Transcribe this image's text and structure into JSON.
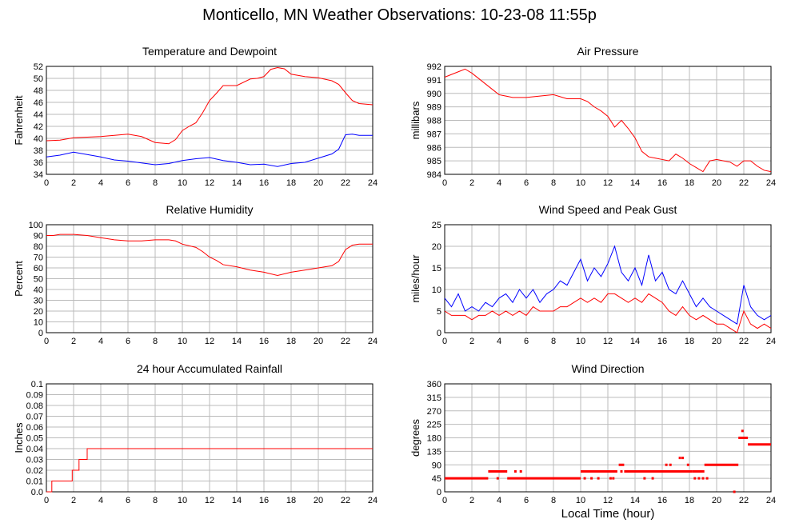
{
  "page": {
    "title": "Monticello, MN Weather Observations: 10-23-08 11:55p",
    "x_axis_title": "Local Time (hour)"
  },
  "colors": {
    "red": "#ff0000",
    "blue": "#0000ff",
    "grid": "#bbbbbb",
    "axis": "#000000"
  },
  "chart_data": [
    {
      "id": "temp",
      "type": "line",
      "title": "Temperature and Dewpoint",
      "ylabel": "Fahrenheit",
      "xlabel": "",
      "xlim": [
        0,
        24
      ],
      "ylim": [
        34,
        52
      ],
      "x_ticks": [
        0,
        2,
        4,
        6,
        8,
        10,
        12,
        14,
        16,
        18,
        20,
        22,
        24
      ],
      "y_ticks": [
        34,
        36,
        38,
        40,
        42,
        44,
        46,
        48,
        50,
        52
      ],
      "grid": true,
      "series": [
        {
          "color": "#ff0000",
          "x": [
            0,
            1,
            2,
            3,
            4,
            5,
            6,
            7,
            8,
            9,
            9.5,
            10,
            10.5,
            11,
            11.5,
            12,
            12.5,
            13,
            14,
            15,
            15.5,
            16,
            16.5,
            17,
            17.5,
            18,
            19,
            20,
            21,
            21.5,
            22,
            22.5,
            23,
            24
          ],
          "y": [
            39.6,
            39.7,
            40.1,
            40.2,
            40.3,
            40.5,
            40.7,
            40.3,
            39.3,
            39.1,
            39.8,
            41.3,
            42.0,
            42.6,
            44.3,
            46.3,
            47.5,
            48.8,
            48.8,
            49.9,
            50.0,
            50.3,
            51.5,
            51.8,
            51.6,
            50.7,
            50.3,
            50.1,
            49.6,
            49.0,
            47.6,
            46.3,
            45.8,
            45.6
          ]
        },
        {
          "color": "#0000ff",
          "x": [
            0,
            1,
            2,
            3,
            4,
            5,
            6,
            7,
            8,
            9,
            10,
            11,
            12,
            13,
            14,
            15,
            16,
            17,
            18,
            19,
            20,
            21,
            21.5,
            22,
            22.5,
            23,
            24
          ],
          "y": [
            36.9,
            37.2,
            37.7,
            37.3,
            36.9,
            36.4,
            36.2,
            35.9,
            35.6,
            35.8,
            36.3,
            36.6,
            36.8,
            36.3,
            36.0,
            35.6,
            35.7,
            35.3,
            35.8,
            36.0,
            36.7,
            37.4,
            38.2,
            40.6,
            40.7,
            40.5,
            40.5
          ]
        }
      ]
    },
    {
      "id": "pressure",
      "type": "line",
      "title": "Air Pressure",
      "ylabel": "millibars",
      "xlabel": "",
      "xlim": [
        0,
        24
      ],
      "ylim": [
        984,
        992
      ],
      "x_ticks": [
        0,
        2,
        4,
        6,
        8,
        10,
        12,
        14,
        16,
        18,
        20,
        22,
        24
      ],
      "y_ticks": [
        984,
        985,
        986,
        987,
        988,
        989,
        990,
        991,
        992
      ],
      "grid": true,
      "series": [
        {
          "color": "#ff0000",
          "x": [
            0,
            0.5,
            1,
            1.5,
            2,
            2.5,
            3,
            3.5,
            4,
            5,
            6,
            7,
            8,
            9,
            10,
            10.5,
            11,
            11.5,
            12,
            12.5,
            13,
            13.5,
            14,
            14.5,
            15,
            15.5,
            16,
            16.5,
            17,
            17.5,
            18,
            18.5,
            19,
            19.5,
            20,
            20.5,
            21,
            21.5,
            22,
            22.5,
            23,
            23.5,
            24
          ],
          "y": [
            991.2,
            991.4,
            991.6,
            991.8,
            991.5,
            991.1,
            990.7,
            990.3,
            989.9,
            989.7,
            989.7,
            989.8,
            989.9,
            989.6,
            989.6,
            989.4,
            989.0,
            988.7,
            988.3,
            987.5,
            988.0,
            987.4,
            986.7,
            985.7,
            985.3,
            985.2,
            985.1,
            985.0,
            985.5,
            985.2,
            984.8,
            984.5,
            984.2,
            985.0,
            985.1,
            985.0,
            984.9,
            984.6,
            985.0,
            985.0,
            984.6,
            984.3,
            984.2
          ]
        }
      ]
    },
    {
      "id": "humidity",
      "type": "line",
      "title": "Relative Humidity",
      "ylabel": "Percent",
      "xlabel": "",
      "xlim": [
        0,
        24
      ],
      "ylim": [
        0,
        100
      ],
      "x_ticks": [
        0,
        2,
        4,
        6,
        8,
        10,
        12,
        14,
        16,
        18,
        20,
        22,
        24
      ],
      "y_ticks": [
        0,
        10,
        20,
        30,
        40,
        50,
        60,
        70,
        80,
        90,
        100
      ],
      "grid": true,
      "series": [
        {
          "color": "#ff0000",
          "x": [
            0,
            0.5,
            1,
            2,
            3,
            4,
            5,
            6,
            7,
            8,
            9,
            9.5,
            10,
            11,
            11.5,
            12,
            12.5,
            13,
            14,
            15,
            16,
            17,
            18,
            19,
            20,
            20.5,
            21,
            21.5,
            22,
            22.5,
            23,
            24
          ],
          "y": [
            90,
            90,
            91,
            91,
            90,
            88,
            86,
            85,
            85,
            86,
            86,
            85,
            82,
            79,
            75,
            70,
            67,
            63,
            61,
            58,
            56,
            53,
            56,
            58,
            60,
            61,
            62,
            66,
            77,
            81,
            82,
            82
          ]
        }
      ]
    },
    {
      "id": "wind",
      "type": "line",
      "title": "Wind Speed and Peak Gust",
      "ylabel": "miles/hour",
      "xlabel": "",
      "xlim": [
        0,
        24
      ],
      "ylim": [
        0,
        25
      ],
      "x_ticks": [
        0,
        2,
        4,
        6,
        8,
        10,
        12,
        14,
        16,
        18,
        20,
        22,
        24
      ],
      "y_ticks": [
        0,
        5,
        10,
        15,
        20,
        25
      ],
      "grid": true,
      "series": [
        {
          "color": "#0000ff",
          "x": [
            0,
            0.5,
            1,
            1.5,
            2,
            2.5,
            3,
            3.5,
            4,
            4.5,
            5,
            5.5,
            6,
            6.5,
            7,
            7.5,
            8,
            8.5,
            9,
            9.5,
            10,
            10.5,
            11,
            11.5,
            12,
            12.5,
            13,
            13.5,
            14,
            14.5,
            15,
            15.5,
            16,
            16.5,
            17,
            17.5,
            18,
            18.5,
            19,
            19.5,
            20,
            20.5,
            21,
            21.5,
            22,
            22.5,
            23,
            23.5,
            24
          ],
          "y": [
            8,
            6,
            9,
            5,
            6,
            5,
            7,
            6,
            8,
            9,
            7,
            10,
            8,
            10,
            7,
            9,
            10,
            12,
            11,
            14,
            17,
            12,
            15,
            13,
            16,
            20,
            14,
            12,
            15,
            11,
            18,
            12,
            14,
            10,
            9,
            12,
            9,
            6,
            8,
            6,
            5,
            4,
            3,
            2,
            11,
            6,
            4,
            3,
            4
          ]
        },
        {
          "color": "#ff0000",
          "x": [
            0,
            0.5,
            1,
            1.5,
            2,
            2.5,
            3,
            3.5,
            4,
            4.5,
            5,
            5.5,
            6,
            6.5,
            7,
            7.5,
            8,
            8.5,
            9,
            9.5,
            10,
            10.5,
            11,
            11.5,
            12,
            12.5,
            13,
            13.5,
            14,
            14.5,
            15,
            15.5,
            16,
            16.5,
            17,
            17.5,
            18,
            18.5,
            19,
            19.5,
            20,
            20.5,
            21,
            21.5,
            22,
            22.5,
            23,
            23.5,
            24
          ],
          "y": [
            5,
            4,
            4,
            4,
            3,
            4,
            4,
            5,
            4,
            5,
            4,
            5,
            4,
            6,
            5,
            5,
            5,
            6,
            6,
            7,
            8,
            7,
            8,
            7,
            9,
            9,
            8,
            7,
            8,
            7,
            9,
            8,
            7,
            5,
            4,
            6,
            4,
            3,
            4,
            3,
            2,
            2,
            1,
            0,
            5,
            2,
            1,
            2,
            1
          ]
        }
      ]
    },
    {
      "id": "rain",
      "type": "line",
      "title": "24 hour Accumulated Rainfall",
      "ylabel": "Inches",
      "xlabel": "",
      "xlim": [
        0,
        24
      ],
      "ylim": [
        0,
        0.1
      ],
      "x_ticks": [
        0,
        2,
        4,
        6,
        8,
        10,
        12,
        14,
        16,
        18,
        20,
        22,
        24
      ],
      "y_ticks": [
        0.0,
        0.01,
        0.02,
        0.03,
        0.04,
        0.05,
        0.06,
        0.07,
        0.08,
        0.09,
        0.1
      ],
      "y_tick_labels": [
        "0.0",
        "0.01",
        "0.02",
        "0.03",
        "0.04",
        "0.05",
        "0.06",
        "0.07",
        "0.08",
        "0.09",
        "0.1"
      ],
      "grid": true,
      "series": [
        {
          "color": "#ff0000",
          "step": true,
          "x": [
            0,
            0.4,
            1.9,
            2.4,
            2.7,
            3.0,
            24
          ],
          "y": [
            0.0,
            0.01,
            0.02,
            0.03,
            0.03,
            0.04,
            0.04
          ]
        }
      ]
    },
    {
      "id": "winddir",
      "type": "scatter",
      "title": "Wind Direction",
      "ylabel": "degrees",
      "xlabel": "Local Time (hour)",
      "xlim": [
        0,
        24
      ],
      "ylim": [
        0,
        360
      ],
      "x_ticks": [
        0,
        2,
        4,
        6,
        8,
        10,
        12,
        14,
        16,
        18,
        20,
        22,
        24
      ],
      "y_ticks": [
        0,
        45,
        90,
        135,
        180,
        225,
        270,
        315,
        360
      ],
      "grid": true,
      "segments": [
        {
          "color": "#ff0000",
          "x0": 0,
          "x1": 3.2,
          "y": 45
        },
        {
          "color": "#ff0000",
          "x0": 3.2,
          "x1": 4.6,
          "y": 68
        },
        {
          "color": "#ff0000",
          "x0": 4.6,
          "x1": 10.0,
          "y": 45
        },
        {
          "color": "#ff0000",
          "x0": 10.0,
          "x1": 12.7,
          "y": 68
        },
        {
          "color": "#ff0000",
          "x0": 12.8,
          "x1": 13.2,
          "y": 90
        },
        {
          "color": "#ff0000",
          "x0": 13.2,
          "x1": 16.0,
          "y": 68
        },
        {
          "color": "#ff0000",
          "x0": 16.0,
          "x1": 18.2,
          "y": 68
        },
        {
          "color": "#ff0000",
          "x0": 18.2,
          "x1": 19.1,
          "y": 68
        },
        {
          "color": "#ff0000",
          "x0": 19.1,
          "x1": 21.6,
          "y": 90
        },
        {
          "color": "#ff0000",
          "x0": 21.6,
          "x1": 22.3,
          "y": 180
        },
        {
          "color": "#ff0000",
          "x0": 22.3,
          "x1": 24.0,
          "y": 158
        }
      ],
      "points": {
        "color": "#ff0000",
        "x": [
          3.9,
          5.2,
          5.6,
          10.3,
          10.8,
          11.3,
          12.2,
          12.4,
          13.0,
          14.4,
          14.7,
          15.3,
          15.6,
          16.3,
          16.6,
          17.1,
          17.3,
          17.5,
          17.9,
          18.4,
          18.7,
          19.0,
          19.3,
          21.3,
          21.9
        ],
        "y": [
          45,
          68,
          68,
          45,
          45,
          45,
          45,
          45,
          68,
          68,
          45,
          45,
          68,
          90,
          90,
          68,
          113,
          113,
          90,
          45,
          45,
          45,
          45,
          0,
          203
        ]
      }
    }
  ]
}
